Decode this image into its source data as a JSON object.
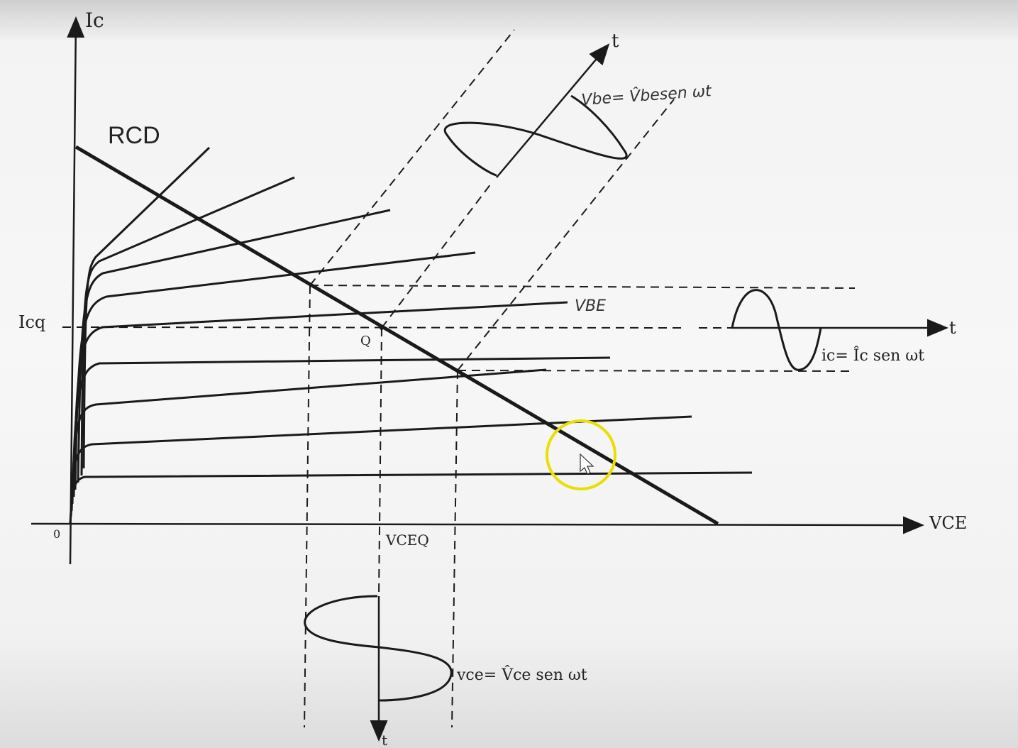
{
  "diagram": {
    "axes": {
      "y_label": "Ic",
      "x_label": "VCE",
      "origin_label": "0",
      "time_axis_top": "t",
      "time_axis_right": "t",
      "time_axis_bottom": "t"
    },
    "load_line_label": "RCD",
    "q_point_label": "Q",
    "icq_label": "Icq",
    "vceq_label": "VCEQ",
    "vbe_curve_label": "VBE",
    "vbe_equation": "Vbe= V̂besen ωt",
    "ic_equation": "ic= Îc sen ωt",
    "vce_equation": "vce= V̂ce sen ωt"
  },
  "colors": {
    "ink": "#1a1a1a",
    "highlight": "#e8e000"
  }
}
